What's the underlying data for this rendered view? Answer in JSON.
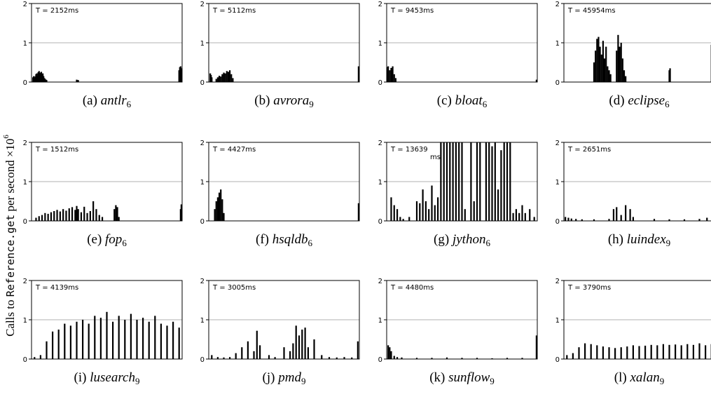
{
  "figure": {
    "ylabel_parts": [
      "Calls to ",
      "Reference.get",
      " per second ×10",
      "6"
    ]
  },
  "chart_data": [
    {
      "type": "bar",
      "panel": "(a)",
      "name": "antlr",
      "sub": "6",
      "annotation": "T = 2152ms",
      "ylim": [
        0,
        2
      ],
      "yticks": [
        "0",
        "1",
        "2"
      ],
      "grid": "y=1",
      "x": [
        0.01,
        0.015,
        0.02,
        0.025,
        0.03,
        0.035,
        0.04,
        0.045,
        0.05,
        0.055,
        0.06,
        0.065,
        0.07,
        0.075,
        0.08,
        0.085,
        0.09,
        0.095,
        0.1,
        0.3,
        0.31,
        0.98,
        0.985,
        0.99,
        0.995
      ],
      "values": [
        0.12,
        0.15,
        0.1,
        0.14,
        0.2,
        0.22,
        0.16,
        0.25,
        0.28,
        0.24,
        0.2,
        0.26,
        0.18,
        0.22,
        0.15,
        0.1,
        0.08,
        0.06,
        0.05,
        0.06,
        0.05,
        0.3,
        0.38,
        0.4,
        0.35
      ]
    },
    {
      "type": "bar",
      "panel": "(b)",
      "name": "avrora",
      "sub": "9",
      "annotation": "T = 5112ms",
      "ylim": [
        0,
        2
      ],
      "yticks": [
        "0",
        "1",
        "2"
      ],
      "grid": "y=1",
      "x": [
        0.01,
        0.015,
        0.02,
        0.05,
        0.06,
        0.07,
        0.08,
        0.09,
        0.1,
        0.11,
        0.12,
        0.13,
        0.14,
        0.15,
        0.16,
        0.995
      ],
      "values": [
        0.22,
        0.18,
        0.12,
        0.08,
        0.12,
        0.16,
        0.14,
        0.2,
        0.24,
        0.22,
        0.28,
        0.26,
        0.3,
        0.2,
        0.1,
        0.4
      ]
    },
    {
      "type": "bar",
      "panel": "(c)",
      "name": "bloat",
      "sub": "6",
      "annotation": "T = 9453ms",
      "ylim": [
        0,
        2
      ],
      "yticks": [
        "0",
        "1",
        "2"
      ],
      "grid": "y=1",
      "x": [
        0.005,
        0.01,
        0.02,
        0.03,
        0.04,
        0.05,
        0.06,
        0.995
      ],
      "values": [
        0.38,
        0.4,
        0.3,
        0.36,
        0.4,
        0.2,
        0.1,
        0.06
      ]
    },
    {
      "type": "bar",
      "panel": "(d)",
      "name": "eclipse",
      "sub": "6",
      "annotation": "T = 45954ms",
      "ylim": [
        0,
        2
      ],
      "yticks": [
        "0",
        "1",
        "2"
      ],
      "grid": "y=1",
      "x": [
        0.2,
        0.21,
        0.22,
        0.23,
        0.24,
        0.25,
        0.26,
        0.27,
        0.28,
        0.29,
        0.3,
        0.31,
        0.35,
        0.36,
        0.37,
        0.38,
        0.39,
        0.4,
        0.41,
        0.7,
        0.705,
        0.98
      ],
      "values": [
        0.5,
        0.8,
        1.1,
        1.15,
        0.9,
        0.7,
        1.05,
        0.6,
        0.9,
        0.4,
        0.3,
        0.2,
        0.8,
        1.2,
        0.9,
        1.0,
        0.6,
        0.3,
        0.15,
        0.3,
        0.35,
        0.95
      ]
    },
    {
      "type": "bar",
      "panel": "(e)",
      "name": "fop",
      "sub": "6",
      "annotation": "T = 1512ms",
      "ylim": [
        0,
        2
      ],
      "yticks": [
        "0",
        "1",
        "2"
      ],
      "grid": "y=1",
      "x": [
        0.03,
        0.05,
        0.07,
        0.09,
        0.11,
        0.13,
        0.15,
        0.17,
        0.19,
        0.21,
        0.23,
        0.25,
        0.27,
        0.29,
        0.3,
        0.31,
        0.33,
        0.35,
        0.37,
        0.39,
        0.41,
        0.43,
        0.45,
        0.47,
        0.55,
        0.56,
        0.57,
        0.58,
        0.99,
        0.995
      ],
      "values": [
        0.08,
        0.12,
        0.15,
        0.2,
        0.18,
        0.22,
        0.25,
        0.28,
        0.24,
        0.3,
        0.26,
        0.32,
        0.35,
        0.28,
        0.38,
        0.3,
        0.22,
        0.36,
        0.2,
        0.25,
        0.5,
        0.3,
        0.15,
        0.1,
        0.3,
        0.4,
        0.35,
        0.1,
        0.3,
        0.42
      ]
    },
    {
      "type": "bar",
      "panel": "(f)",
      "name": "hsqldb",
      "sub": "6",
      "annotation": "T = 4427ms",
      "ylim": [
        0,
        2
      ],
      "yticks": [
        "0",
        "1",
        "2"
      ],
      "grid": "y=1",
      "x": [
        0.04,
        0.05,
        0.06,
        0.07,
        0.08,
        0.09,
        0.1,
        0.995
      ],
      "values": [
        0.3,
        0.5,
        0.6,
        0.72,
        0.8,
        0.55,
        0.2,
        0.45
      ]
    },
    {
      "type": "bar",
      "panel": "(g)",
      "name": "jython",
      "sub": "6",
      "annotation": "T = 13639 ms",
      "ylim": [
        0,
        2
      ],
      "yticks": [
        "0",
        "1",
        "2"
      ],
      "grid": "y=1",
      "x": [
        0.03,
        0.05,
        0.07,
        0.09,
        0.11,
        0.15,
        0.2,
        0.22,
        0.24,
        0.26,
        0.28,
        0.3,
        0.32,
        0.34,
        0.36,
        0.38,
        0.4,
        0.42,
        0.44,
        0.46,
        0.48,
        0.5,
        0.52,
        0.56,
        0.58,
        0.6,
        0.62,
        0.66,
        0.68,
        0.7,
        0.72,
        0.74,
        0.76,
        0.78,
        0.8,
        0.82,
        0.84,
        0.86,
        0.88,
        0.9,
        0.92,
        0.95,
        0.98
      ],
      "values": [
        0.6,
        0.4,
        0.3,
        0.1,
        0.05,
        0.1,
        0.5,
        0.45,
        0.8,
        0.5,
        0.3,
        0.9,
        0.4,
        0.6,
        2.0,
        2.0,
        2.0,
        2.0,
        2.0,
        2.0,
        2.0,
        2.0,
        0.3,
        2.0,
        0.5,
        2.0,
        2.0,
        2.0,
        2.0,
        1.9,
        2.0,
        0.8,
        1.8,
        2.0,
        2.0,
        2.0,
        0.2,
        0.3,
        0.2,
        0.4,
        0.2,
        0.3,
        0.1
      ]
    },
    {
      "type": "bar",
      "panel": "(h)",
      "name": "luindex",
      "sub": "9",
      "annotation": "T = 2651ms",
      "ylim": [
        0,
        2
      ],
      "yticks": [
        "0",
        "1",
        "2"
      ],
      "grid": "y=1",
      "x": [
        0.01,
        0.03,
        0.05,
        0.08,
        0.12,
        0.2,
        0.3,
        0.33,
        0.35,
        0.38,
        0.41,
        0.44,
        0.46,
        0.6,
        0.7,
        0.8,
        0.9,
        0.95
      ],
      "values": [
        0.1,
        0.08,
        0.06,
        0.05,
        0.04,
        0.04,
        0.05,
        0.3,
        0.35,
        0.15,
        0.4,
        0.3,
        0.1,
        0.05,
        0.04,
        0.04,
        0.05,
        0.08
      ]
    },
    {
      "type": "bar",
      "panel": "(i)",
      "name": "lusearch",
      "sub": "9",
      "annotation": "T = 4139ms",
      "ylim": [
        0,
        2
      ],
      "yticks": [
        "0",
        "1",
        "2"
      ],
      "grid": "y=1",
      "x": [
        0.02,
        0.06,
        0.1,
        0.14,
        0.18,
        0.22,
        0.26,
        0.3,
        0.34,
        0.38,
        0.42,
        0.46,
        0.5,
        0.54,
        0.58,
        0.62,
        0.66,
        0.7,
        0.74,
        0.78,
        0.82,
        0.86,
        0.9,
        0.94,
        0.98
      ],
      "values": [
        0.05,
        0.1,
        0.45,
        0.7,
        0.75,
        0.9,
        0.85,
        0.95,
        1.0,
        0.9,
        1.1,
        1.05,
        1.2,
        0.95,
        1.1,
        1.0,
        1.15,
        1.0,
        1.05,
        0.95,
        1.1,
        0.9,
        0.85,
        0.95,
        0.8
      ]
    },
    {
      "type": "bar",
      "panel": "(j)",
      "name": "pmd",
      "sub": "9",
      "annotation": "T = 3005ms",
      "ylim": [
        0,
        2
      ],
      "yticks": [
        "0",
        "1",
        "2"
      ],
      "grid": "y=1",
      "x": [
        0.02,
        0.06,
        0.1,
        0.14,
        0.18,
        0.22,
        0.26,
        0.3,
        0.32,
        0.34,
        0.4,
        0.44,
        0.5,
        0.54,
        0.56,
        0.58,
        0.6,
        0.62,
        0.64,
        0.66,
        0.7,
        0.75,
        0.8,
        0.85,
        0.9,
        0.95,
        0.99
      ],
      "values": [
        0.1,
        0.05,
        0.04,
        0.05,
        0.15,
        0.3,
        0.45,
        0.2,
        0.72,
        0.35,
        0.1,
        0.05,
        0.3,
        0.2,
        0.4,
        0.85,
        0.6,
        0.75,
        0.8,
        0.3,
        0.5,
        0.1,
        0.05,
        0.04,
        0.05,
        0.04,
        0.45
      ]
    },
    {
      "type": "bar",
      "panel": "(k)",
      "name": "sunflow",
      "sub": "9",
      "annotation": "T = 4480ms",
      "ylim": [
        0,
        2
      ],
      "yticks": [
        "0",
        "1",
        "2"
      ],
      "grid": "y=1",
      "x": [
        0.01,
        0.02,
        0.03,
        0.05,
        0.07,
        0.1,
        0.2,
        0.3,
        0.4,
        0.5,
        0.6,
        0.7,
        0.8,
        0.9,
        0.995
      ],
      "values": [
        0.35,
        0.3,
        0.2,
        0.08,
        0.05,
        0.04,
        0.03,
        0.03,
        0.04,
        0.03,
        0.03,
        0.02,
        0.03,
        0.03,
        0.6
      ]
    },
    {
      "type": "bar",
      "panel": "(l)",
      "name": "xalan",
      "sub": "9",
      "annotation": "T = 3790ms",
      "ylim": [
        0,
        2
      ],
      "yticks": [
        "0",
        "1",
        "2"
      ],
      "grid": "y=1",
      "x": [
        0.02,
        0.06,
        0.1,
        0.14,
        0.18,
        0.22,
        0.26,
        0.3,
        0.34,
        0.38,
        0.42,
        0.46,
        0.5,
        0.54,
        0.58,
        0.62,
        0.66,
        0.7,
        0.74,
        0.78,
        0.82,
        0.86,
        0.9,
        0.94,
        0.98
      ],
      "values": [
        0.1,
        0.15,
        0.3,
        0.4,
        0.38,
        0.35,
        0.32,
        0.3,
        0.28,
        0.3,
        0.32,
        0.35,
        0.33,
        0.34,
        0.36,
        0.35,
        0.38,
        0.36,
        0.37,
        0.35,
        0.38,
        0.36,
        0.4,
        0.35,
        0.38
      ]
    }
  ]
}
